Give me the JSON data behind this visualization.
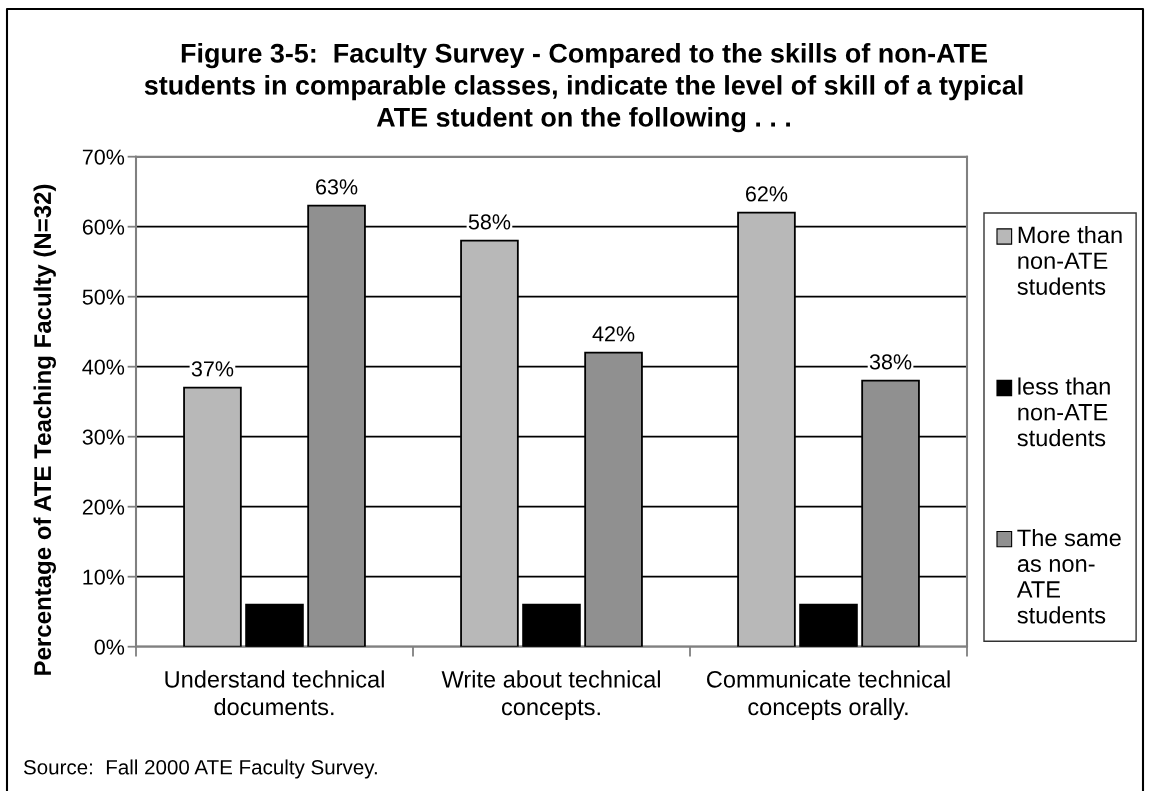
{
  "chart_data": {
    "type": "bar",
    "title": "Figure 3-5:  Faculty Survey - Compared to the skills of non-ATE\nstudents in comparable classes, indicate the level of skill of a typical\nATE student on the following . . .",
    "ylabel": "Percentage of ATE Teaching Faculty (N=32)",
    "categories": [
      "Understand technical\ndocuments.",
      "Write about technical\nconcepts.",
      "Communicate technical\nconcepts orally."
    ],
    "series": [
      {
        "name": "More than\nnon-ATE\nstudents",
        "color": "#b8b8b8",
        "values": [
          37,
          58,
          62
        ],
        "value_labels": [
          "37%",
          "58%",
          "62%"
        ]
      },
      {
        "name": "less than\nnon-ATE\nstudents",
        "color": "#000000",
        "values": [
          6,
          6,
          6
        ],
        "value_labels": [
          null,
          null,
          null
        ]
      },
      {
        "name": "The same\nas non-\nATE\nstudents",
        "color": "#909090",
        "values": [
          63,
          42,
          38
        ],
        "value_labels": [
          "63%",
          "42%",
          "38%"
        ]
      }
    ],
    "ylim": [
      0,
      70
    ],
    "yticks": [
      {
        "value": 0,
        "label": "0%"
      },
      {
        "value": 10,
        "label": "10%"
      },
      {
        "value": 20,
        "label": "20%"
      },
      {
        "value": 30,
        "label": "30%"
      },
      {
        "value": 40,
        "label": "40%"
      },
      {
        "value": 50,
        "label": "50%"
      },
      {
        "value": 60,
        "label": "60%"
      },
      {
        "value": 70,
        "label": "70%"
      }
    ],
    "grid": "y",
    "legend": "right",
    "annotations": [
      "Source:  Fall 2000 ATE Faculty Survey."
    ]
  }
}
